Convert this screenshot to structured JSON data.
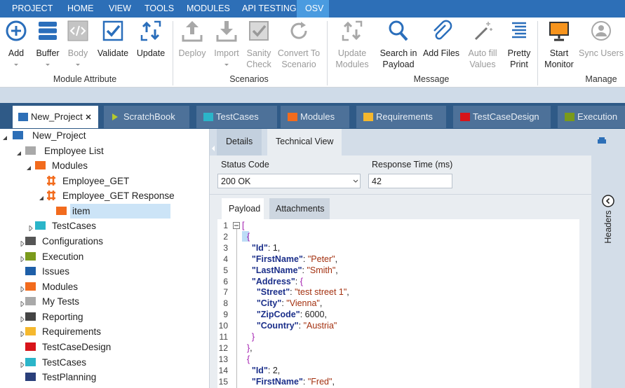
{
  "menu_tabs": [
    "PROJECT",
    "HOME",
    "VIEW",
    "TOOLS",
    "MODULES",
    "API TESTING",
    "OSV"
  ],
  "ribbon": {
    "groups": [
      {
        "label": "Module Attribute",
        "buttons": [
          "Add",
          "Buffer",
          "Body",
          "Validate",
          "Update"
        ]
      },
      {
        "label": "Scenarios",
        "buttons": [
          "Deploy",
          "Import",
          "Sanity\nCheck",
          "Convert To\nScenario"
        ]
      },
      {
        "label": "Message",
        "buttons": [
          "Update\nModules",
          "Search in\nPayload",
          "Add Files",
          "Auto fill\nValues",
          "Pretty\nPrint"
        ]
      },
      {
        "label": "Manage",
        "buttons": [
          "Start\nMonitor",
          "Sync Users"
        ]
      }
    ]
  },
  "doc_tabs": [
    "New_Project",
    "ScratchBook",
    "TestCases",
    "Modules",
    "Requirements",
    "TestCaseDesign",
    "Execution"
  ],
  "tree": [
    "New_Project",
    "Employee List",
    "Modules",
    "Employee_GET",
    "Employee_GET Response",
    "item",
    "TestCases",
    "Configurations",
    "Execution",
    "Issues",
    "Modules",
    "My Tests",
    "Reporting",
    "Requirements",
    "TestCaseDesign",
    "TestCases",
    "TestPlanning"
  ],
  "detail_tabs": [
    "Details",
    "Technical View"
  ],
  "status_code_label": "Status Code",
  "status_code_value": "200 OK",
  "response_time_label": "Response Time (ms)",
  "response_time_value": "42",
  "payload_tabs": [
    "Payload",
    "Attachments"
  ],
  "side_panel": "Headers",
  "code": [
    {
      "n": 1,
      "tokens": [
        [
          "[",
          "b"
        ]
      ]
    },
    {
      "n": 2,
      "tokens": [
        [
          "  ",
          "p"
        ],
        [
          "{",
          "b"
        ]
      ]
    },
    {
      "n": 3,
      "tokens": [
        [
          "    ",
          "p"
        ],
        [
          "\"Id\"",
          "k"
        ],
        [
          ": ",
          "p"
        ],
        [
          "1",
          "n"
        ],
        [
          ",",
          "p"
        ]
      ]
    },
    {
      "n": 4,
      "tokens": [
        [
          "    ",
          "p"
        ],
        [
          "\"FirstName\"",
          "k"
        ],
        [
          ": ",
          "p"
        ],
        [
          "\"Peter\"",
          "s"
        ],
        [
          ",",
          "p"
        ]
      ]
    },
    {
      "n": 5,
      "tokens": [
        [
          "    ",
          "p"
        ],
        [
          "\"LastName\"",
          "k"
        ],
        [
          ": ",
          "p"
        ],
        [
          "\"Smith\"",
          "s"
        ],
        [
          ",",
          "p"
        ]
      ]
    },
    {
      "n": 6,
      "tokens": [
        [
          "    ",
          "p"
        ],
        [
          "\"Address\"",
          "k"
        ],
        [
          ": ",
          "p"
        ],
        [
          "{",
          "b"
        ]
      ]
    },
    {
      "n": 7,
      "tokens": [
        [
          "      ",
          "p"
        ],
        [
          "\"Street\"",
          "k"
        ],
        [
          ": ",
          "p"
        ],
        [
          "\"test street 1\"",
          "s"
        ],
        [
          ",",
          "p"
        ]
      ]
    },
    {
      "n": 8,
      "tokens": [
        [
          "      ",
          "p"
        ],
        [
          "\"City\"",
          "k"
        ],
        [
          ": ",
          "p"
        ],
        [
          "\"Vienna\"",
          "s"
        ],
        [
          ",",
          "p"
        ]
      ]
    },
    {
      "n": 9,
      "tokens": [
        [
          "      ",
          "p"
        ],
        [
          "\"ZipCode\"",
          "k"
        ],
        [
          ": ",
          "p"
        ],
        [
          "6000",
          "n"
        ],
        [
          ",",
          "p"
        ]
      ]
    },
    {
      "n": 10,
      "tokens": [
        [
          "      ",
          "p"
        ],
        [
          "\"Country\"",
          "k"
        ],
        [
          ": ",
          "p"
        ],
        [
          "\"Austria\"",
          "s"
        ]
      ]
    },
    {
      "n": 11,
      "tokens": [
        [
          "    ",
          "p"
        ],
        [
          "}",
          "b"
        ]
      ]
    },
    {
      "n": 12,
      "tokens": [
        [
          "  ",
          "p"
        ],
        [
          "}",
          "b"
        ],
        [
          ",",
          "p"
        ]
      ]
    },
    {
      "n": 13,
      "tokens": [
        [
          "  ",
          "p"
        ],
        [
          "{",
          "b"
        ]
      ]
    },
    {
      "n": 14,
      "tokens": [
        [
          "    ",
          "p"
        ],
        [
          "\"Id\"",
          "k"
        ],
        [
          ": ",
          "p"
        ],
        [
          "2",
          "n"
        ],
        [
          ",",
          "p"
        ]
      ]
    },
    {
      "n": 15,
      "tokens": [
        [
          "    ",
          "p"
        ],
        [
          "\"FirstName\"",
          "k"
        ],
        [
          ": ",
          "p"
        ],
        [
          "\"Fred\"",
          "s"
        ],
        [
          ",",
          "p"
        ]
      ]
    }
  ]
}
